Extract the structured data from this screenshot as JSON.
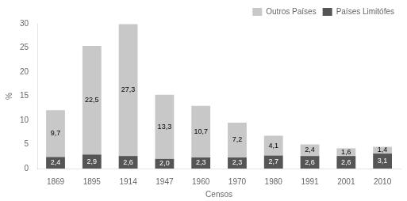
{
  "chart_data": {
    "type": "bar",
    "stacked": true,
    "categories": [
      "1869",
      "1895",
      "1914",
      "1947",
      "1960",
      "1970",
      "1980",
      "1991",
      "2001",
      "2010"
    ],
    "series": [
      {
        "name": "Países Limitófes",
        "color": "#555555",
        "values": [
          2.4,
          2.9,
          2.6,
          2.0,
          2.3,
          2.3,
          2.7,
          2.6,
          2.6,
          3.1
        ],
        "value_labels": [
          "2,4",
          "2,9",
          "2,6",
          "2,0",
          "2,3",
          "2,3",
          "2,7",
          "2,6",
          "2,6",
          "3,1"
        ]
      },
      {
        "name": "Outros Países",
        "color": "#c8c8c8",
        "values": [
          9.7,
          22.5,
          27.3,
          13.3,
          10.7,
          7.2,
          4.1,
          2.4,
          1.6,
          1.4
        ],
        "value_labels": [
          "9,7",
          "22,5",
          "27,3",
          "13,3",
          "10,7",
          "7,2",
          "4,1",
          "2,4",
          "1,6",
          "1,4"
        ]
      }
    ],
    "xlabel": "Censos",
    "ylabel": "%",
    "ylim": [
      0,
      30
    ],
    "yticks": [
      0,
      5,
      10,
      15,
      20,
      25,
      30
    ],
    "grid": false,
    "legend": "upper right",
    "data_labels": true
  }
}
